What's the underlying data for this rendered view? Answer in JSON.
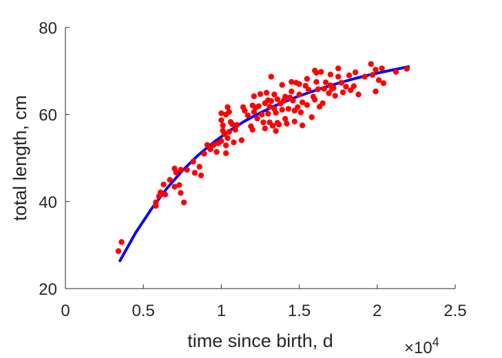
{
  "chart_data": {
    "type": "scatter",
    "xlabel": "time since birth, d",
    "ylabel": "total length, cm",
    "x_exponent_label": "×10",
    "x_exponent_power": "4",
    "xlim": [
      0,
      25000
    ],
    "ylim": [
      20,
      80
    ],
    "x_ticks": [
      0,
      5000,
      10000,
      15000,
      20000,
      25000
    ],
    "x_tick_labels": [
      "0",
      "0.5",
      "1",
      "1.5",
      "2",
      "2.5"
    ],
    "y_ticks": [
      20,
      40,
      60,
      80
    ],
    "y_tick_labels": [
      "20",
      "40",
      "60",
      "80"
    ],
    "grid": false,
    "colors": {
      "points": "#ff0000",
      "fit": "#0000ff",
      "axes": "#262626"
    },
    "fit_curve": {
      "x": [
        3500,
        4500,
        5500,
        6500,
        7500,
        8500,
        9500,
        10500,
        11500,
        12500,
        13500,
        14500,
        15500,
        16500,
        17500,
        18500,
        19500,
        20500,
        21500,
        22000
      ],
      "y": [
        26.4,
        32.8,
        38.2,
        43.0,
        47.1,
        50.6,
        53.6,
        56.2,
        58.5,
        60.4,
        62.1,
        63.6,
        64.9,
        66.1,
        67.2,
        68.2,
        69.1,
        69.9,
        70.6,
        71.0
      ]
    },
    "points": [
      [
        3400,
        28.6
      ],
      [
        3600,
        30.7
      ],
      [
        5800,
        39.0
      ],
      [
        5800,
        39.8
      ],
      [
        6000,
        41.2
      ],
      [
        6100,
        42.1
      ],
      [
        6300,
        43.9
      ],
      [
        6400,
        41.6
      ],
      [
        6700,
        45.0
      ],
      [
        7000,
        47.6
      ],
      [
        7000,
        43.4
      ],
      [
        7100,
        46.7
      ],
      [
        7300,
        43.8
      ],
      [
        7400,
        47.3
      ],
      [
        7400,
        42.0
      ],
      [
        7600,
        39.8
      ],
      [
        7800,
        47.3
      ],
      [
        8200,
        49.2
      ],
      [
        8300,
        46.6
      ],
      [
        8600,
        48.0
      ],
      [
        8700,
        46.0
      ],
      [
        8900,
        51.0
      ],
      [
        9100,
        53.0
      ],
      [
        9300,
        52.0
      ],
      [
        9500,
        53.0
      ],
      [
        9700,
        51.4
      ],
      [
        9800,
        53.4
      ],
      [
        10000,
        53.9
      ],
      [
        10000,
        58.7
      ],
      [
        10000,
        60.3
      ],
      [
        10100,
        57.5
      ],
      [
        10100,
        56.3
      ],
      [
        10200,
        55.5
      ],
      [
        10300,
        52.9
      ],
      [
        10300,
        60.0
      ],
      [
        10300,
        51.1
      ],
      [
        10400,
        61.7
      ],
      [
        10400,
        54.6
      ],
      [
        10500,
        56.0
      ],
      [
        10500,
        60.6
      ],
      [
        10600,
        58.3
      ],
      [
        10700,
        57.8
      ],
      [
        10800,
        53.6
      ],
      [
        10900,
        56.5
      ],
      [
        11000,
        57.6
      ],
      [
        11300,
        54.1
      ],
      [
        11400,
        61.7
      ],
      [
        11500,
        60.9
      ],
      [
        11700,
        59.8
      ],
      [
        11900,
        57.3
      ],
      [
        12000,
        56.5
      ],
      [
        12000,
        62.1
      ],
      [
        12100,
        60.6
      ],
      [
        12100,
        64.2
      ],
      [
        12200,
        61.6
      ],
      [
        12300,
        59.1
      ],
      [
        12400,
        61.9
      ],
      [
        12500,
        64.7
      ],
      [
        12600,
        60.0
      ],
      [
        12700,
        58.2
      ],
      [
        12800,
        62.6
      ],
      [
        12800,
        56.8
      ],
      [
        12900,
        65.0
      ],
      [
        13000,
        60.2
      ],
      [
        13000,
        63.3
      ],
      [
        13100,
        58.2
      ],
      [
        13100,
        61.8
      ],
      [
        13200,
        68.7
      ],
      [
        13200,
        63.1
      ],
      [
        13300,
        57.4
      ],
      [
        13400,
        61.3
      ],
      [
        13400,
        64.6
      ],
      [
        13500,
        56.2
      ],
      [
        13500,
        60.4
      ],
      [
        13600,
        58.1
      ],
      [
        13600,
        63.5
      ],
      [
        13700,
        57.7
      ],
      [
        13800,
        62.5
      ],
      [
        13900,
        66.8
      ],
      [
        13900,
        61.1
      ],
      [
        14000,
        63.2
      ],
      [
        14100,
        64.1
      ],
      [
        14100,
        59.0
      ],
      [
        14200,
        57.9
      ],
      [
        14300,
        61.3
      ],
      [
        14400,
        63.9
      ],
      [
        14500,
        67.5
      ],
      [
        14500,
        65.3
      ],
      [
        14600,
        63.2
      ],
      [
        14700,
        60.9
      ],
      [
        14700,
        58.4
      ],
      [
        14800,
        67.3
      ],
      [
        14900,
        61.7
      ],
      [
        15000,
        64.6
      ],
      [
        15000,
        67.0
      ],
      [
        15100,
        60.5
      ],
      [
        15200,
        62.8
      ],
      [
        15200,
        57.5
      ],
      [
        15400,
        66.6
      ],
      [
        15500,
        68.2
      ],
      [
        15500,
        62.2
      ],
      [
        15600,
        65.7
      ],
      [
        15800,
        59.4
      ],
      [
        15900,
        64.1
      ],
      [
        16000,
        63.4
      ],
      [
        16000,
        70.1
      ],
      [
        16100,
        69.6
      ],
      [
        16100,
        67.5
      ],
      [
        16200,
        65.8
      ],
      [
        16300,
        61.8
      ],
      [
        16400,
        69.8
      ],
      [
        16500,
        62.6
      ],
      [
        16600,
        65.9
      ],
      [
        16700,
        67.4
      ],
      [
        16900,
        64.9
      ],
      [
        17000,
        66.7
      ],
      [
        17000,
        69.2
      ],
      [
        17100,
        65.9
      ],
      [
        17200,
        66.1
      ],
      [
        17300,
        64.3
      ],
      [
        17500,
        68.7
      ],
      [
        17500,
        70.6
      ],
      [
        17700,
        67.3
      ],
      [
        17800,
        65.1
      ],
      [
        18000,
        66.4
      ],
      [
        18200,
        69.0
      ],
      [
        18300,
        65.6
      ],
      [
        18500,
        66.5
      ],
      [
        18600,
        69.7
      ],
      [
        18800,
        64.6
      ],
      [
        19200,
        68.7
      ],
      [
        19600,
        71.6
      ],
      [
        19700,
        69.1
      ],
      [
        19900,
        70.3
      ],
      [
        19900,
        65.3
      ],
      [
        20100,
        67.9
      ],
      [
        20300,
        70.6
      ],
      [
        20400,
        67.2
      ],
      [
        21200,
        69.8
      ],
      [
        21900,
        70.5
      ]
    ]
  }
}
